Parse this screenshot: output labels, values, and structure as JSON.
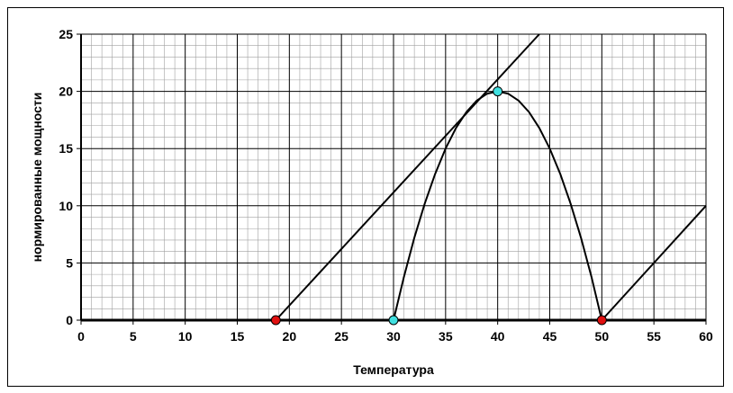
{
  "chart_data": {
    "type": "line",
    "title": "",
    "xlabel": "Температура",
    "ylabel": "нормированные мощности",
    "xlim": [
      0,
      60
    ],
    "ylim": [
      0,
      25
    ],
    "x_ticks": [
      0,
      5,
      10,
      15,
      20,
      25,
      30,
      35,
      40,
      45,
      50,
      55,
      60
    ],
    "y_ticks": [
      0,
      5,
      10,
      15,
      20,
      25
    ],
    "grid": {
      "major": true,
      "minor": true
    },
    "legend": "none",
    "colors": {
      "line": "#000000",
      "grid_major": "#000000",
      "grid_minor": "#a0a0a0",
      "marker_red": "#e01010",
      "marker_cyan": "#40e0e0"
    },
    "series": [
      {
        "type": "line",
        "x": [
          18.7,
          44
        ],
        "y": [
          0,
          25
        ]
      },
      {
        "type": "line",
        "x": [
          50,
          60
        ],
        "y": [
          0,
          10
        ]
      },
      {
        "type": "curve",
        "x": [
          30,
          31,
          32,
          33,
          34,
          35,
          36,
          37,
          38,
          39,
          40,
          41,
          42,
          43,
          44,
          45,
          46,
          47,
          48,
          49,
          50
        ],
        "y": [
          0,
          3.8,
          7.2,
          10.2,
          12.8,
          15.0,
          16.8,
          18.2,
          19.2,
          19.8,
          20,
          19.8,
          19.2,
          18.2,
          16.8,
          15.0,
          12.8,
          10.2,
          7.2,
          3.8,
          0
        ]
      },
      {
        "type": "markers",
        "color": "#e01010",
        "x": [
          18.7,
          50
        ],
        "y": [
          0,
          0
        ]
      },
      {
        "type": "markers",
        "color": "#40e0e0",
        "x": [
          30,
          40
        ],
        "y": [
          0,
          20
        ]
      }
    ]
  }
}
